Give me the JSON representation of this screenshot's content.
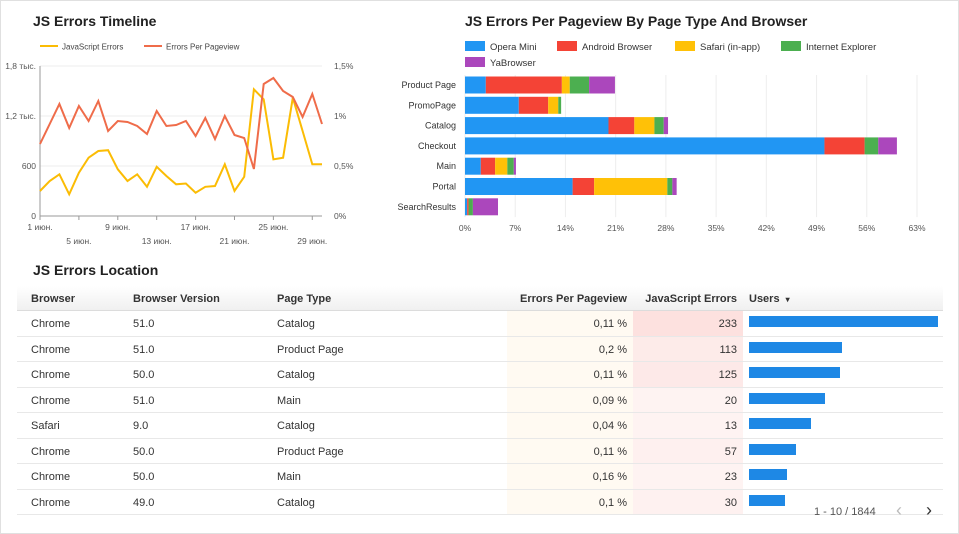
{
  "timeline": {
    "title": "JS Errors Timeline",
    "legend": [
      {
        "name": "JavaScript Errors",
        "color": "#fbbc04"
      },
      {
        "name": "Errors Per Pageview",
        "color": "#ef6c4a"
      }
    ],
    "y_left_ticks": [
      "1,8 тыс.",
      "1,2 тыс.",
      "600",
      "0"
    ],
    "y_right_ticks": [
      "1,5%",
      "1%",
      "0,5%",
      "0%"
    ],
    "x_ticks_top": [
      "1 июн.",
      "9 июн.",
      "17 июн.",
      "25 июн."
    ],
    "x_ticks_bottom": [
      "5 июн.",
      "13 июн.",
      "21 июн.",
      "29 июн."
    ]
  },
  "chart_data": [
    {
      "type": "line",
      "title": "JS Errors Timeline",
      "x": [
        "1 июн.",
        "2 июн.",
        "3 июн.",
        "4 июн.",
        "5 июн.",
        "6 июн.",
        "7 июн.",
        "8 июн.",
        "9 июн.",
        "10 июн.",
        "11 июн.",
        "12 июн.",
        "13 июн.",
        "14 июн.",
        "15 июн.",
        "16 июн.",
        "17 июн.",
        "18 июн.",
        "19 июн.",
        "20 июн.",
        "21 июн.",
        "22 июн.",
        "23 июн.",
        "24 июн.",
        "25 июн.",
        "26 июн.",
        "27 июн.",
        "28 июн.",
        "29 июн.",
        "30 июн."
      ],
      "series": [
        {
          "name": "JavaScript Errors",
          "axis": "left",
          "values": [
            300,
            420,
            500,
            260,
            520,
            700,
            780,
            790,
            560,
            420,
            500,
            350,
            590,
            480,
            380,
            390,
            280,
            350,
            360,
            620,
            300,
            470,
            1520,
            1400,
            680,
            700,
            1420,
            1020,
            620,
            620
          ]
        },
        {
          "name": "Errors Per Pageview",
          "axis": "right",
          "values": [
            0.72,
            0.92,
            1.12,
            0.88,
            1.1,
            0.95,
            1.15,
            0.85,
            0.95,
            0.94,
            0.9,
            0.82,
            1.05,
            0.9,
            0.91,
            0.95,
            0.8,
            0.98,
            0.77,
            1.0,
            0.81,
            0.78,
            0.47,
            1.32,
            1.38,
            1.25,
            1.19,
            0.99,
            1.22,
            0.92
          ]
        }
      ],
      "ylim_left": [
        0,
        1800
      ],
      "ylim_right": [
        0,
        1.5
      ],
      "legend": "top"
    },
    {
      "type": "bar",
      "orientation": "horizontal",
      "stacked": true,
      "title": "JS Errors Per Pageview By Page Type And Browser",
      "categories": [
        "Product Page",
        "PromoPage",
        "Catalog",
        "Checkout",
        "Main",
        "Portal",
        "SearchResults"
      ],
      "series": [
        {
          "name": "Opera Mini",
          "color": "#2196f3",
          "values": [
            2.9,
            7.5,
            20.0,
            50.1,
            2.2,
            15.0,
            0.3
          ]
        },
        {
          "name": "Android Browser",
          "color": "#f44336",
          "values": [
            10.6,
            4.1,
            3.6,
            5.6,
            2.0,
            3.0,
            0.2
          ]
        },
        {
          "name": "Safari (in-app)",
          "color": "#ffc107",
          "values": [
            1.1,
            1.4,
            2.8,
            0.0,
            1.7,
            10.2,
            0.0
          ]
        },
        {
          "name": "Internet Explorer",
          "color": "#4caf50",
          "values": [
            2.7,
            0.4,
            1.3,
            1.9,
            0.9,
            0.7,
            0.6
          ]
        },
        {
          "name": "YaBrowser",
          "color": "#ab47bc",
          "values": [
            3.6,
            0.0,
            0.6,
            2.6,
            0.3,
            0.6,
            3.5
          ]
        }
      ],
      "x_ticks": [
        "0%",
        "7%",
        "14%",
        "21%",
        "28%",
        "35%",
        "42%",
        "49%",
        "56%",
        "63%"
      ],
      "xlim": [
        0,
        63
      ],
      "legend": "top"
    }
  ],
  "location": {
    "title": "JS Errors Location",
    "columns": {
      "browser": "Browser",
      "version": "Browser Version",
      "page": "Page Type",
      "epp": "Errors Per Pageview",
      "jse": "JavaScript Errors",
      "users": "Users"
    },
    "rows": [
      {
        "browser": "Chrome",
        "version": "51.0",
        "page": "Catalog",
        "epp": "0,11 %",
        "jse": "233",
        "users_share": 1.0
      },
      {
        "browser": "Chrome",
        "version": "51.0",
        "page": "Product Page",
        "epp": "0,2 %",
        "jse": "113",
        "users_share": 0.49
      },
      {
        "browser": "Chrome",
        "version": "50.0",
        "page": "Catalog",
        "epp": "0,11 %",
        "jse": "125",
        "users_share": 0.48
      },
      {
        "browser": "Chrome",
        "version": "51.0",
        "page": "Main",
        "epp": "0,09 %",
        "jse": "20",
        "users_share": 0.4
      },
      {
        "browser": "Safari",
        "version": "9.0",
        "page": "Catalog",
        "epp": "0,04 %",
        "jse": "13",
        "users_share": 0.33
      },
      {
        "browser": "Chrome",
        "version": "50.0",
        "page": "Product Page",
        "epp": "0,11 %",
        "jse": "57",
        "users_share": 0.25
      },
      {
        "browser": "Chrome",
        "version": "50.0",
        "page": "Main",
        "epp": "0,16 %",
        "jse": "23",
        "users_share": 0.2
      },
      {
        "browser": "Chrome",
        "version": "49.0",
        "page": "Catalog",
        "epp": "0,1 %",
        "jse": "30",
        "users_share": 0.19
      }
    ],
    "pager": "1 - 10 / 1844",
    "prev_icon": "‹",
    "next_icon": "›",
    "sort_icon": "▾"
  }
}
